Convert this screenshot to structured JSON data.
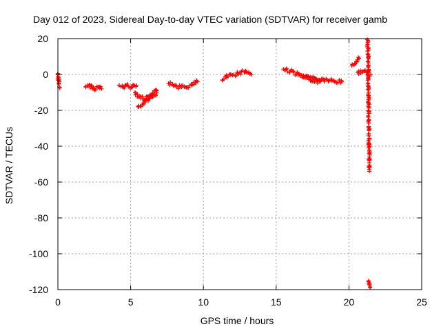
{
  "chart_data": {
    "type": "scatter",
    "title": "Day 012 of 2023, Sidereal Day-to-day VTEC variation (SDTVAR) for receiver gamb",
    "xlabel": "GPS time / hours",
    "ylabel": "SDTVAR / TECUs",
    "xlim": [
      0,
      25
    ],
    "ylim": [
      -120,
      20
    ],
    "xticks": [
      0,
      5,
      10,
      15,
      20,
      25
    ],
    "yticks": [
      20,
      0,
      -20,
      -40,
      -60,
      -80,
      -100,
      -120
    ],
    "xtick_labels": [
      "0",
      "5",
      "10",
      "15",
      "20",
      "25"
    ],
    "ytick_labels": [
      "20",
      "0",
      "-20",
      "-40",
      "-60",
      "-80",
      "-100",
      "-120"
    ],
    "grid": true,
    "marker": "+",
    "series": [
      {
        "name": "SDTVAR",
        "color": "#ff0000",
        "segments": [
          {
            "x": [
              0.0,
              0.05,
              0.1
            ],
            "y": [
              0.5,
              -3,
              -7
            ]
          },
          {
            "x": [
              1.9,
              2.2,
              2.5,
              2.8,
              3.0
            ],
            "y": [
              -7,
              -6,
              -8,
              -7,
              -8
            ]
          },
          {
            "x": [
              4.2,
              4.5,
              4.8,
              5.1,
              5.4
            ],
            "y": [
              -6,
              -7,
              -6,
              -7,
              -6
            ]
          },
          {
            "x": [
              5.3,
              5.6,
              6.0,
              6.4,
              6.8
            ],
            "y": [
              -10,
              -12,
              -14,
              -12,
              -9
            ]
          },
          {
            "x": [
              5.5,
              5.9,
              6.3,
              6.8
            ],
            "y": [
              -18,
              -16,
              -13,
              -10
            ]
          },
          {
            "x": [
              7.6,
              8.0,
              8.4,
              8.8,
              9.2,
              9.6
            ],
            "y": [
              -5,
              -6,
              -7,
              -7,
              -6,
              -4
            ]
          },
          {
            "x": [
              11.3,
              11.7,
              12.1,
              12.5,
              12.9,
              13.3
            ],
            "y": [
              -3,
              -1,
              0,
              1,
              2,
              0
            ]
          },
          {
            "x": [
              15.5,
              16.0,
              16.5,
              17.0,
              17.5,
              18.0
            ],
            "y": [
              3,
              2,
              0,
              -2,
              -3,
              -4
            ]
          },
          {
            "x": [
              17.0,
              17.5,
              18.0,
              18.5,
              19.0,
              19.5
            ],
            "y": [
              -1,
              -2,
              -3,
              -3,
              -4,
              -4
            ]
          },
          {
            "x": [
              20.2,
              20.5,
              20.7
            ],
            "y": [
              5,
              7,
              9
            ]
          },
          {
            "x": [
              20.6,
              20.9,
              21.2,
              21.5
            ],
            "y": [
              1,
              2,
              1,
              0
            ]
          },
          {
            "x": [
              21.3,
              21.35,
              21.4
            ],
            "y": [
              19,
              -16,
              -54
            ]
          },
          {
            "x": [
              21.35,
              21.4,
              21.45
            ],
            "y": [
              -115,
              -117,
              -119
            ]
          }
        ]
      }
    ]
  }
}
